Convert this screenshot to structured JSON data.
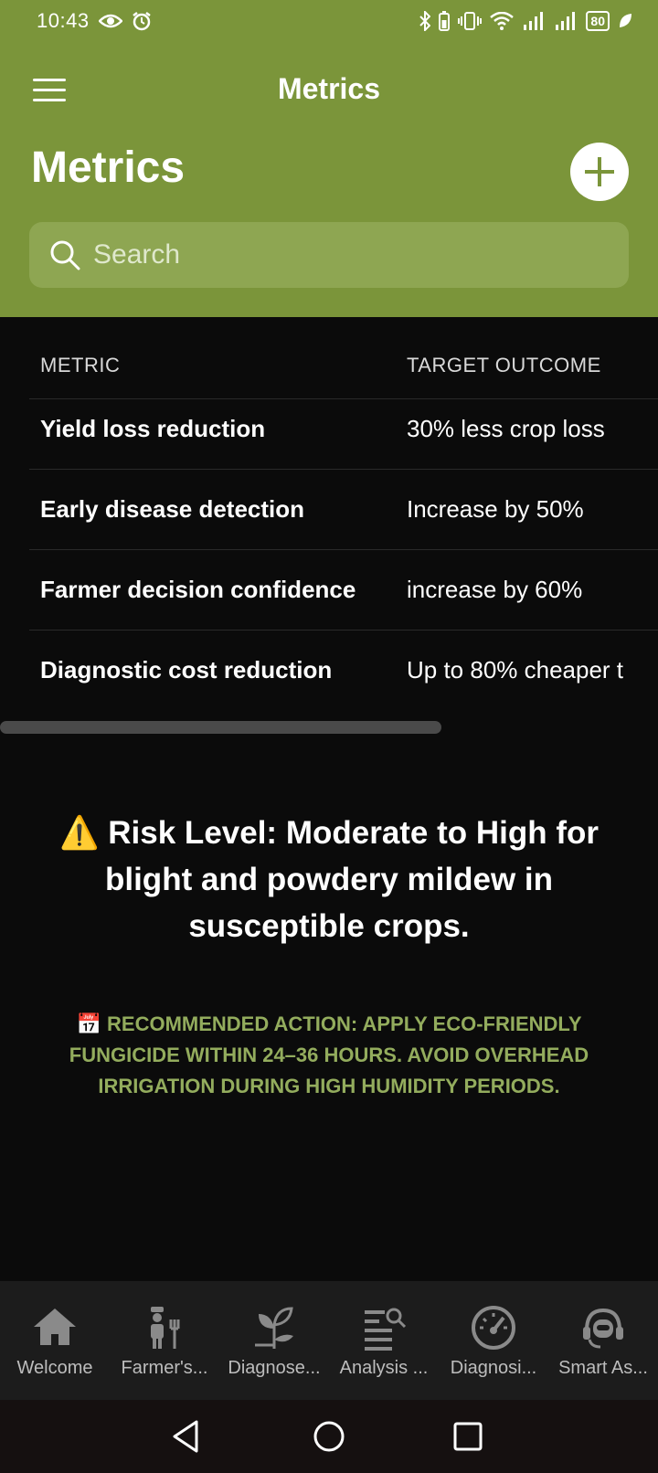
{
  "status_bar": {
    "time": "10:43",
    "battery": "80"
  },
  "header": {
    "nav_title": "Metrics",
    "page_title": "Metrics",
    "search_placeholder": "Search"
  },
  "table": {
    "columns": [
      "METRIC",
      "TARGET OUTCOME"
    ],
    "rows": [
      {
        "metric": "Yield loss reduction",
        "target": "30% less crop loss"
      },
      {
        "metric": "Early disease detection",
        "target": "Increase by 50%"
      },
      {
        "metric": "Farmer decision confidence",
        "target": "increase by 60%"
      },
      {
        "metric": "Diagnostic cost reduction",
        "target": "Up to 80% cheaper t"
      }
    ]
  },
  "risk": {
    "icon": "⚠️",
    "text": "Risk Level: Moderate to High for blight and powdery mildew in susceptible crops."
  },
  "action": {
    "icon": "📅",
    "text": "RECOMMENDED ACTION: APPLY ECO-FRIENDLY FUNGICIDE WITHIN 24–36 HOURS. AVOID OVERHEAD IRRIGATION DURING HIGH HUMIDITY PERIODS."
  },
  "bottom_nav": [
    {
      "label": "Welcome",
      "icon": "home-icon"
    },
    {
      "label": "Farmer's...",
      "icon": "farmer-icon"
    },
    {
      "label": "Diagnose...",
      "icon": "plant-icon"
    },
    {
      "label": "Analysis ...",
      "icon": "analysis-icon"
    },
    {
      "label": "Diagnosi...",
      "icon": "gauge-icon"
    },
    {
      "label": "Smart As...",
      "icon": "assistant-icon"
    }
  ],
  "colors": {
    "brand": "#7b953a",
    "accent_text": "#93ac5d",
    "background": "#0b0b0b"
  }
}
